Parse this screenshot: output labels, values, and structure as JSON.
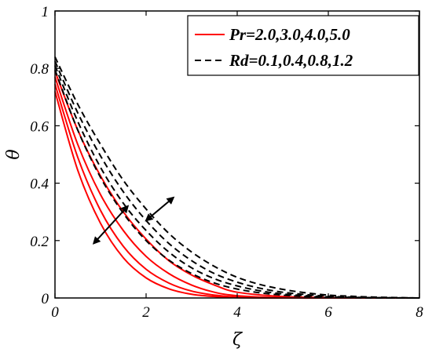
{
  "chart_data": {
    "type": "line",
    "xlabel": "ζ",
    "ylabel": "θ",
    "xlim": [
      0,
      8
    ],
    "ylim": [
      0,
      1
    ],
    "xticks": [
      "0",
      "2",
      "4",
      "6",
      "8"
    ],
    "yticks": [
      "0",
      "0.2",
      "0.4",
      "0.6",
      "0.8",
      "1"
    ],
    "grid": false,
    "legend_position": "top-right",
    "legend": [
      {
        "label": "Pr=2.0,3.0,4.0,5.0",
        "style": "solid",
        "color": "#ff0000"
      },
      {
        "label": "Rd=0.1,0.4,0.8,1.2",
        "style": "dashed",
        "color": "#000000"
      }
    ],
    "series": [
      {
        "style": "solid",
        "color": "#ff0000",
        "x": [
          0,
          0.5,
          1,
          1.5,
          2,
          2.5,
          3,
          3.5,
          4,
          5,
          6,
          7,
          8
        ],
        "y": [
          0.79,
          0.585,
          0.425,
          0.3,
          0.205,
          0.13,
          0.08,
          0.045,
          0.02,
          0.005,
          0.001,
          0,
          0
        ]
      },
      {
        "style": "solid",
        "color": "#ff0000",
        "x": [
          0,
          0.5,
          1,
          1.5,
          2,
          2.5,
          3,
          3.5,
          4,
          5,
          6,
          7,
          8
        ],
        "y": [
          0.77,
          0.535,
          0.36,
          0.235,
          0.145,
          0.085,
          0.045,
          0.02,
          0.008,
          0.001,
          0,
          0,
          0
        ]
      },
      {
        "style": "solid",
        "color": "#ff0000",
        "x": [
          0,
          0.5,
          1,
          1.5,
          2,
          2.5,
          3,
          3.5,
          4,
          5,
          6,
          7,
          8
        ],
        "y": [
          0.745,
          0.49,
          0.305,
          0.18,
          0.1,
          0.052,
          0.024,
          0.01,
          0.003,
          0,
          0,
          0,
          0
        ]
      },
      {
        "style": "solid",
        "color": "#ff0000",
        "x": [
          0,
          0.5,
          1,
          1.5,
          2,
          2.5,
          3,
          3.5,
          4,
          5,
          6,
          7,
          8
        ],
        "y": [
          0.72,
          0.445,
          0.26,
          0.14,
          0.07,
          0.032,
          0.013,
          0.005,
          0.001,
          0,
          0,
          0,
          0
        ]
      },
      {
        "style": "dashed",
        "color": "#000000",
        "x": [
          0,
          0.5,
          1,
          1.5,
          2,
          2.5,
          3,
          3.5,
          4,
          4.5,
          5,
          5.5,
          6,
          6.5,
          7,
          8
        ],
        "y": [
          0.84,
          0.675,
          0.535,
          0.41,
          0.31,
          0.225,
          0.16,
          0.11,
          0.072,
          0.047,
          0.03,
          0.018,
          0.01,
          0.006,
          0.003,
          0
        ]
      },
      {
        "style": "dashed",
        "color": "#000000",
        "x": [
          0,
          0.5,
          1,
          1.5,
          2,
          2.5,
          3,
          3.5,
          4,
          4.5,
          5,
          5.5,
          6,
          6.5,
          7,
          8
        ],
        "y": [
          0.825,
          0.645,
          0.495,
          0.37,
          0.27,
          0.19,
          0.13,
          0.085,
          0.055,
          0.034,
          0.02,
          0.012,
          0.006,
          0.003,
          0.001,
          0
        ]
      },
      {
        "style": "dashed",
        "color": "#000000",
        "x": [
          0,
          0.5,
          1,
          1.5,
          2,
          2.5,
          3,
          3.5,
          4,
          4.5,
          5,
          5.5,
          6,
          6.5,
          7,
          8
        ],
        "y": [
          0.81,
          0.615,
          0.455,
          0.33,
          0.235,
          0.16,
          0.105,
          0.067,
          0.042,
          0.025,
          0.014,
          0.008,
          0.004,
          0.002,
          0.001,
          0
        ]
      },
      {
        "style": "dashed",
        "color": "#000000",
        "x": [
          0,
          0.5,
          1,
          1.5,
          2,
          2.5,
          3,
          3.5,
          4,
          4.5,
          5,
          5.5,
          6,
          6.5,
          7,
          8
        ],
        "y": [
          0.795,
          0.585,
          0.42,
          0.295,
          0.2,
          0.132,
          0.085,
          0.052,
          0.031,
          0.018,
          0.01,
          0.005,
          0.003,
          0.001,
          0,
          0
        ]
      }
    ],
    "annotations": [
      {
        "type": "double-arrow",
        "from": [
          0.85,
          0.19
        ],
        "to": [
          1.6,
          0.32
        ],
        "color": "#000000"
      },
      {
        "type": "double-arrow",
        "from": [
          2.0,
          0.27
        ],
        "to": [
          2.6,
          0.35
        ],
        "color": "#000000"
      }
    ]
  }
}
